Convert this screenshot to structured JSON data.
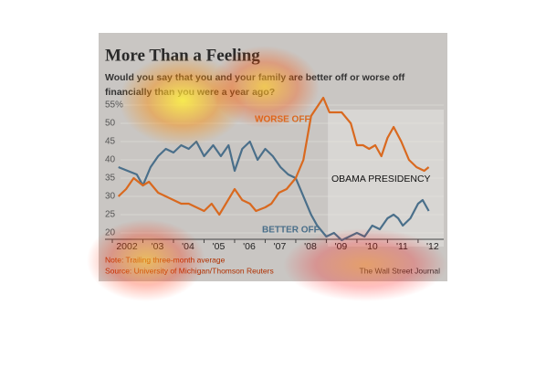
{
  "chart_data": {
    "type": "line",
    "title": "More Than a Feeling",
    "subtitle": "Would you say that you and your family are better off or worse off financially than you were a year ago?",
    "note": "Note: Trailing three-month average",
    "source": "Source: University of Michigan/Thomson Reuters",
    "credit": "The Wall Street Journal",
    "annotations": [
      "WORSE OFF",
      "BETTER OFF",
      "OBAMA PRESIDENCY"
    ],
    "shaded_from": 2009.05,
    "xlim": [
      2002,
      2012.6
    ],
    "xticks": [
      {
        "value": 2002,
        "label": "2002"
      },
      {
        "value": 2003,
        "label": "'03"
      },
      {
        "value": 2004,
        "label": "'04"
      },
      {
        "value": 2005,
        "label": "'05"
      },
      {
        "value": 2006,
        "label": "'06"
      },
      {
        "value": 2007,
        "label": "'07"
      },
      {
        "value": 2008,
        "label": "'08"
      },
      {
        "value": 2009,
        "label": "'09"
      },
      {
        "value": 2010,
        "label": "'10"
      },
      {
        "value": 2011,
        "label": "'11"
      },
      {
        "value": 2012,
        "label": "'12"
      }
    ],
    "ylim": [
      18,
      57
    ],
    "yticks": [
      20,
      25,
      30,
      35,
      40,
      45,
      50,
      {
        "value": 55,
        "label": "55%"
      }
    ],
    "series": [
      {
        "name": "BETTER OFF",
        "color": "#4a6f8a",
        "x": [
          2002.2,
          2002.5,
          2002.8,
          2003.0,
          2003.25,
          2003.5,
          2003.75,
          2004.0,
          2004.25,
          2004.5,
          2004.75,
          2005.0,
          2005.3,
          2005.55,
          2005.8,
          2006.0,
          2006.25,
          2006.5,
          2006.75,
          2007.0,
          2007.25,
          2007.5,
          2007.75,
          2008.0,
          2008.25,
          2008.5,
          2008.7,
          2009.0,
          2009.25,
          2009.5,
          2009.75,
          2010.0,
          2010.25,
          2010.5,
          2010.75,
          2011.0,
          2011.2,
          2011.35,
          2011.5,
          2011.75,
          2012.0,
          2012.15,
          2012.35
        ],
        "values": [
          38,
          37,
          36,
          33,
          38,
          41,
          43,
          42,
          44,
          43,
          45,
          41,
          44,
          41,
          44,
          37,
          43,
          45,
          40,
          43,
          41,
          38,
          36,
          35,
          30,
          25,
          22,
          19,
          20,
          18,
          19,
          20,
          19,
          22,
          21,
          24,
          25,
          24,
          22,
          24,
          28,
          29,
          26
        ]
      },
      {
        "name": "WORSE OFF",
        "color": "#d9691f",
        "x": [
          2002.2,
          2002.45,
          2002.7,
          2003.0,
          2003.2,
          2003.5,
          2003.75,
          2004.0,
          2004.25,
          2004.5,
          2005.0,
          2005.25,
          2005.5,
          2006.0,
          2006.25,
          2006.5,
          2006.7,
          2007.0,
          2007.2,
          2007.45,
          2007.7,
          2008.0,
          2008.25,
          2008.5,
          2008.9,
          2009.1,
          2009.5,
          2009.8,
          2010.0,
          2010.2,
          2010.4,
          2010.6,
          2010.8,
          2011.0,
          2011.2,
          2011.45,
          2011.7,
          2011.95,
          2012.2,
          2012.35
        ],
        "values": [
          30,
          32,
          35,
          33,
          34,
          31,
          30,
          29,
          28,
          28,
          26,
          28,
          25,
          32,
          29,
          28,
          26,
          27,
          28,
          31,
          32,
          35,
          40,
          52,
          57,
          53,
          53,
          50,
          44,
          44,
          43,
          44,
          41,
          46,
          49,
          45,
          40,
          38,
          37,
          38
        ]
      }
    ]
  }
}
